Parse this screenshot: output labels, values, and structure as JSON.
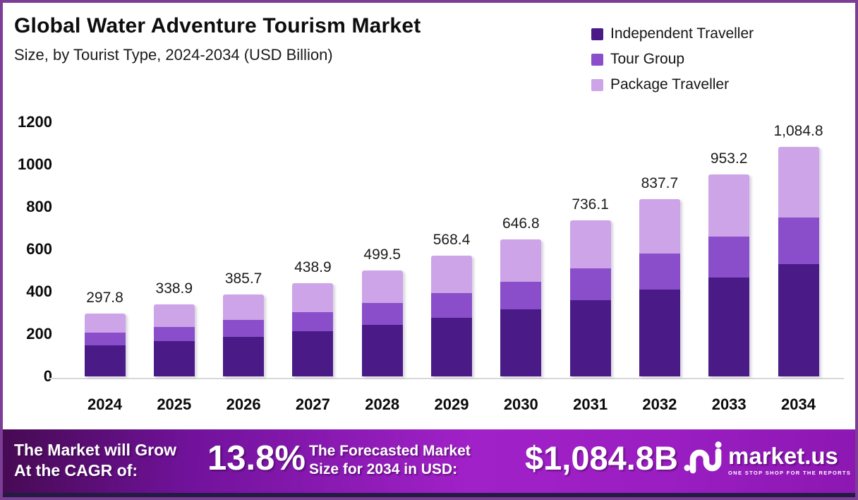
{
  "header": {
    "title": "Global Water Adventure Tourism Market",
    "subtitle": "Size, by  Tourist Type, 2024-2034 (USD Billion)"
  },
  "legend": {
    "items": [
      {
        "label": "Independent Traveller",
        "color": "#4a1b87"
      },
      {
        "label": "Tour Group",
        "color": "#8a4ecb"
      },
      {
        "label": "Package Traveller",
        "color": "#cda4e8"
      }
    ]
  },
  "chart_data": {
    "type": "bar",
    "stacked": true,
    "title": "Global Water Adventure Tourism Market Size, by Tourist Type, 2024-2034 (USD Billion)",
    "categories": [
      "2024",
      "2025",
      "2026",
      "2027",
      "2028",
      "2029",
      "2030",
      "2031",
      "2032",
      "2033",
      "2034"
    ],
    "series": [
      {
        "name": "Independent Traveller",
        "color": "#4a1b87",
        "values": [
          145.3,
          165.4,
          188.2,
          214.2,
          243.8,
          277.4,
          315.6,
          359.2,
          408.8,
          465.2,
          529.4
        ]
      },
      {
        "name": "Tour Group",
        "color": "#8a4ecb",
        "values": [
          60.8,
          69.1,
          78.7,
          89.5,
          101.9,
          116.0,
          131.9,
          150.2,
          170.9,
          194.5,
          221.3
        ]
      },
      {
        "name": "Package Traveller",
        "color": "#cda4e8",
        "values": [
          91.7,
          104.4,
          118.8,
          135.2,
          153.8,
          175.0,
          199.3,
          226.7,
          258.0,
          293.5,
          334.1
        ]
      }
    ],
    "totals": [
      297.8,
      338.9,
      385.7,
      438.9,
      499.5,
      568.4,
      646.8,
      736.1,
      837.7,
      953.2,
      1084.8
    ],
    "total_labels": [
      "297.8",
      "338.9",
      "385.7",
      "438.9",
      "499.5",
      "568.4",
      "646.8",
      "736.1",
      "837.7",
      "953.2",
      "1,084.8"
    ],
    "y_ticks": [
      0,
      200,
      400,
      600,
      800,
      1000,
      1200
    ],
    "ylim": [
      0,
      1200
    ],
    "xlabel": "",
    "ylabel": "",
    "grid": false,
    "legend_position": "top-right"
  },
  "banner": {
    "cagr_label_line1": "The Market will Grow",
    "cagr_label_line2": "At the CAGR of:",
    "cagr_value": "13.8%",
    "forecast_label_line1": "The Forecasted Market",
    "forecast_label_line2": "Size for 2034 in USD:",
    "forecast_value": "$1,084.8B",
    "logo_text": "market.us",
    "logo_tagline": "ONE STOP SHOP FOR THE REPORTS"
  },
  "colors": {
    "frame_border": "#7b3d96",
    "bottom_strip": "#201d40",
    "axis_line": "#d8d8d8",
    "banner_gradient_start": "#460a52",
    "banner_gradient_mid": "#a121c8",
    "banner_gradient_end": "#8d17b2"
  }
}
